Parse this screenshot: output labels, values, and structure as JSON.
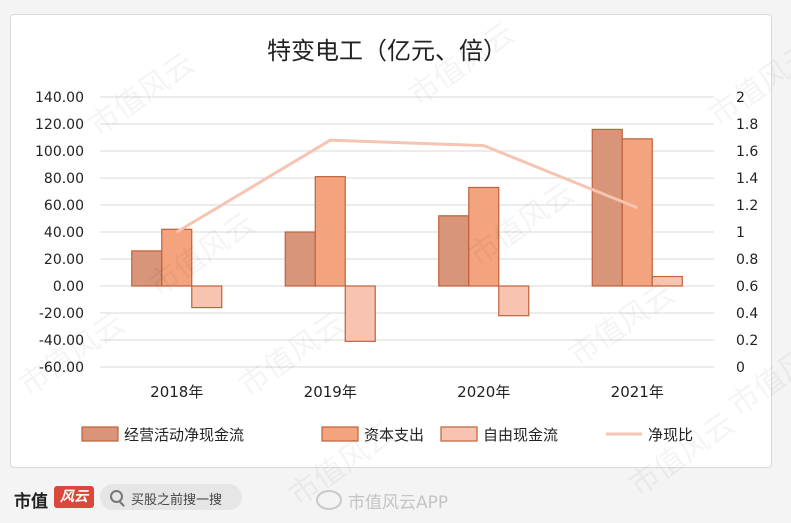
{
  "chart_data": {
    "type": "bar",
    "title": "特变电工（亿元、倍）",
    "categories": [
      "2018年",
      "2019年",
      "2020年",
      "2021年"
    ],
    "series": [
      {
        "name": "经营活动净现金流",
        "type": "bar",
        "axis": "left",
        "values": [
          26,
          40,
          52,
          116
        ],
        "color": "#d9957a"
      },
      {
        "name": "资本支出",
        "type": "bar",
        "axis": "left",
        "values": [
          42,
          81,
          73,
          109
        ],
        "color": "#f3a47e"
      },
      {
        "name": "自由现金流",
        "type": "bar",
        "axis": "left",
        "values": [
          -16,
          -41,
          -22,
          7
        ],
        "color": "#f7c4b1"
      },
      {
        "name": "净现比",
        "type": "line",
        "axis": "right",
        "values": [
          1.0,
          1.68,
          1.64,
          1.18
        ],
        "color": "#f6c4b2"
      }
    ],
    "y_left": {
      "min": -60,
      "max": 140,
      "ticks": [
        "140.00",
        "120.00",
        "100.00",
        "80.00",
        "60.00",
        "40.00",
        "20.00",
        "0.00",
        "-20.00",
        "-40.00",
        "-60.00"
      ]
    },
    "y_right": {
      "min": 0,
      "max": 2,
      "ticks": [
        "2",
        "1.8",
        "1.6",
        "1.4",
        "1.2",
        "1",
        "0.8",
        "0.6",
        "0.4",
        "0.2",
        "0"
      ]
    },
    "grid": true,
    "legend": "bottom"
  },
  "footer": {
    "brand": "市值",
    "brand_badge": "风云",
    "search_text": "买股之前搜一搜",
    "weibo_text": "市值风云APP"
  },
  "watermark_text": "市值风云",
  "colors": {
    "bar_border": "#c0623a",
    "grid": "#d9d9d9"
  }
}
